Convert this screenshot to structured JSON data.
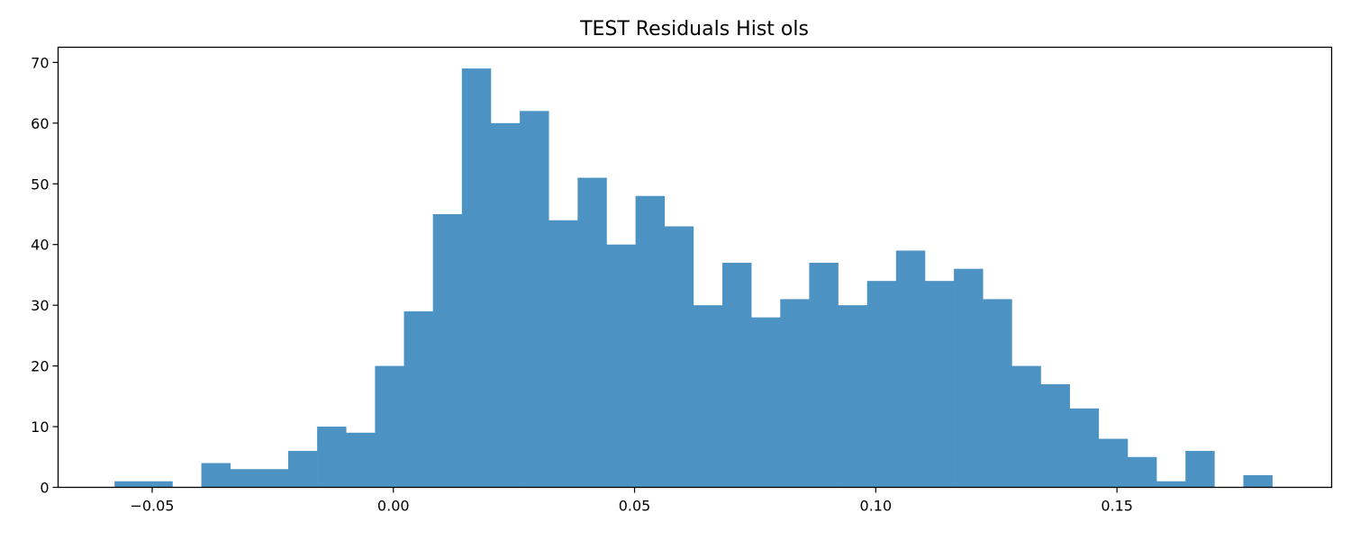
{
  "chart_data": {
    "type": "bar",
    "title": "TEST Residuals Hist ols",
    "xlabel": "",
    "ylabel": "",
    "bar_color": "#4c92c3",
    "grid": false,
    "legend": "none",
    "xlim": [
      -0.0695,
      0.1945
    ],
    "ylim": [
      0,
      72.5
    ],
    "x_ticks": [
      -0.05,
      0.0,
      0.05,
      0.1,
      0.15
    ],
    "x_tick_labels": [
      "−0.05",
      "0.00",
      "0.05",
      "0.10",
      "0.15"
    ],
    "y_ticks": [
      0,
      10,
      20,
      30,
      40,
      50,
      60,
      70
    ],
    "y_tick_labels": [
      "0",
      "10",
      "20",
      "30",
      "40",
      "50",
      "60",
      "70"
    ],
    "bin_start": -0.0578,
    "bin_width": 0.006,
    "counts": [
      1,
      1,
      0,
      4,
      3,
      3,
      6,
      10,
      9,
      20,
      29,
      45,
      69,
      60,
      62,
      44,
      51,
      40,
      48,
      43,
      30,
      37,
      28,
      31,
      37,
      30,
      34,
      39,
      34,
      36,
      31,
      20,
      17,
      13,
      8,
      5,
      1,
      6,
      0,
      2
    ]
  }
}
